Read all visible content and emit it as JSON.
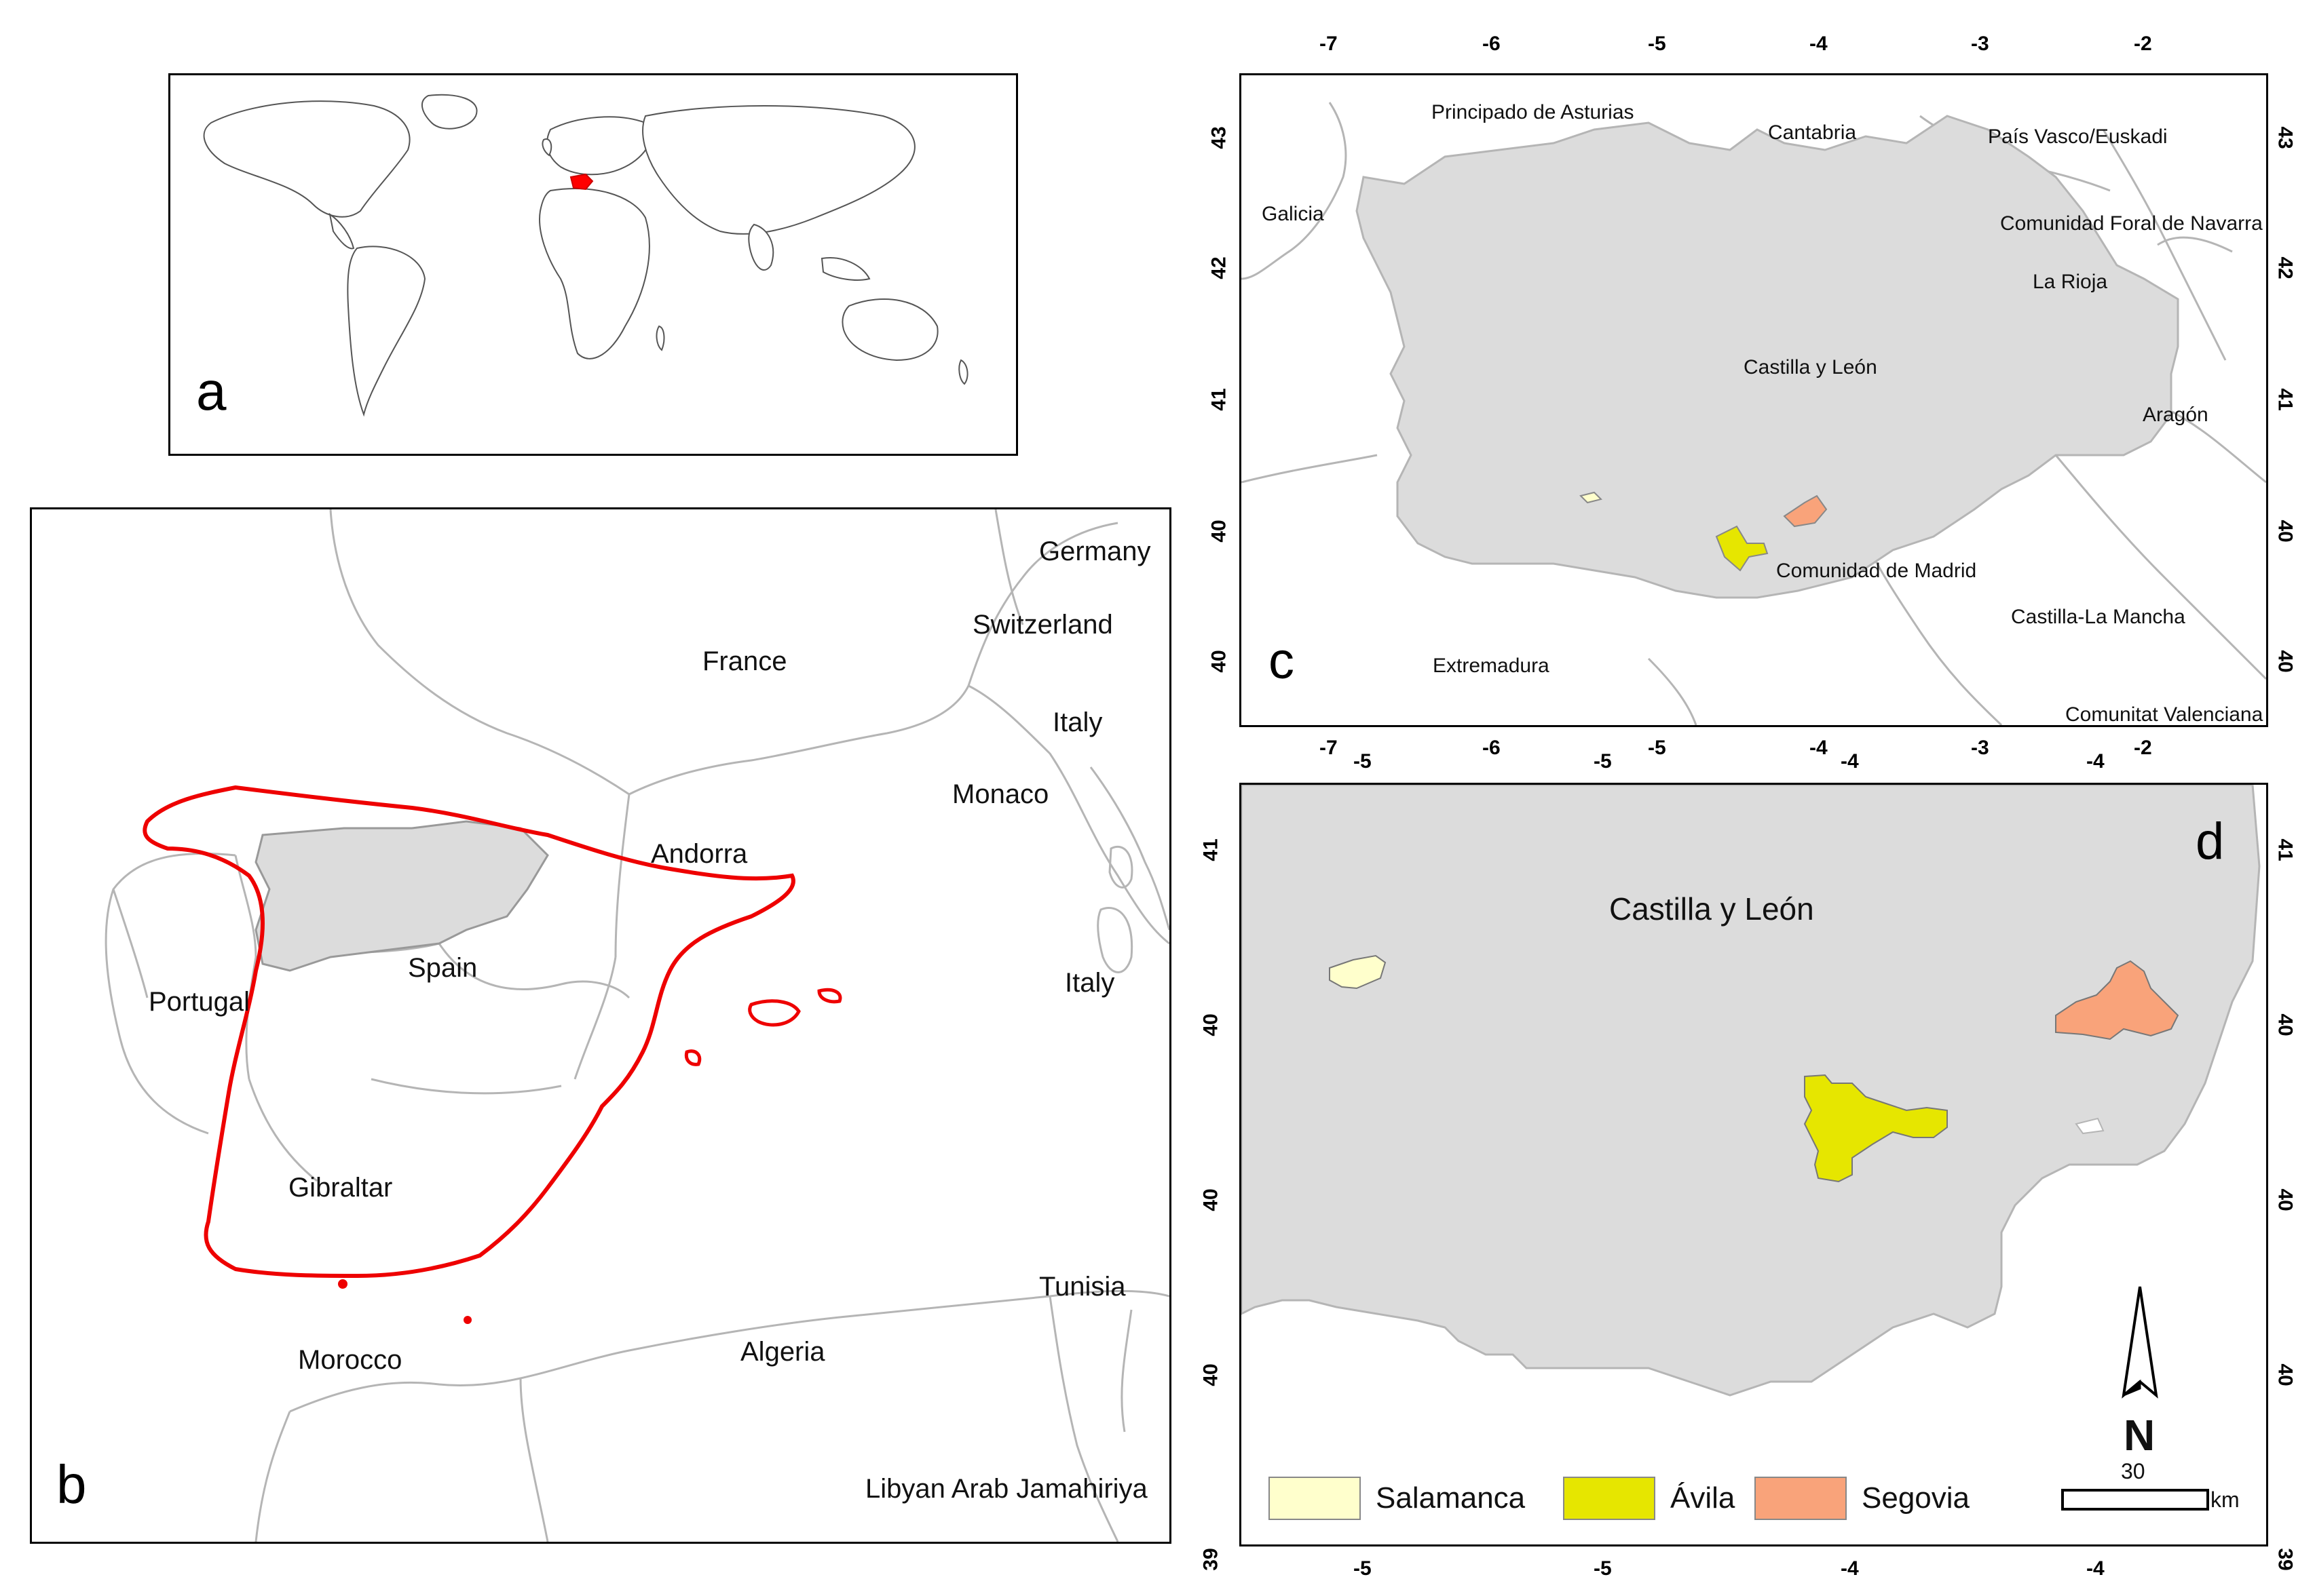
{
  "panels": {
    "a": {
      "label": "a"
    },
    "b": {
      "label": "b",
      "countries": [
        "Germany",
        "Switzerland",
        "France",
        "Italy",
        "Monaco",
        "Andorra",
        "Spain",
        "Portugal",
        "Italy",
        "Gibraltar",
        "Tunisia",
        "Morocco",
        "Algeria",
        "Libyan Arab Jamahiriya"
      ]
    },
    "c": {
      "label": "c",
      "regions": [
        "Principado de Asturias",
        "Cantabria",
        "País Vasco/Euskadi",
        "Galicia",
        "Comunidad Foral de Navarra",
        "La Rioja",
        "Castilla y León",
        "Aragón",
        "Comunidad de Madrid",
        "Castilla-La Mancha",
        "Extremadura",
        "Comunitat Valenciana"
      ],
      "x_ticks": [
        "-7",
        "-6",
        "-5",
        "-4",
        "-3",
        "-2"
      ],
      "y_ticks": [
        "43",
        "42",
        "41",
        "40",
        "40"
      ]
    },
    "d": {
      "label": "d",
      "title": "Castilla y León",
      "x_ticks": [
        "-5",
        "-5",
        "-4",
        "-4"
      ],
      "y_ticks": [
        "41",
        "40",
        "40",
        "40",
        "39"
      ],
      "north": "N",
      "scale_value": "30",
      "scale_unit": "km"
    }
  },
  "legend": [
    {
      "label": "Salamanca",
      "color": "#ffffcc"
    },
    {
      "label": "Ávila",
      "color": "#e6e600"
    },
    {
      "label": "Segovia",
      "color": "#f9a37a"
    }
  ],
  "colors": {
    "highlight": "#ff0000",
    "region_fill": "#dcdcdc",
    "border": "#b5b5b5"
  }
}
